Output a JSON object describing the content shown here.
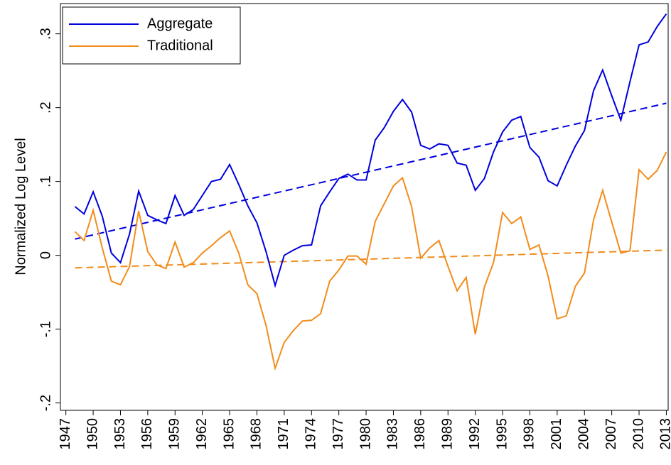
{
  "chart_data": {
    "type": "line",
    "ylabel": "Normalized Log Level",
    "x": [
      1948,
      1949,
      1950,
      1951,
      1952,
      1953,
      1954,
      1955,
      1956,
      1957,
      1958,
      1959,
      1960,
      1961,
      1962,
      1963,
      1964,
      1965,
      1966,
      1967,
      1968,
      1969,
      1970,
      1971,
      1972,
      1973,
      1974,
      1975,
      1976,
      1977,
      1978,
      1979,
      1980,
      1981,
      1982,
      1983,
      1984,
      1985,
      1986,
      1987,
      1988,
      1989,
      1990,
      1991,
      1992,
      1993,
      1994,
      1995,
      1996,
      1997,
      1998,
      1999,
      2000,
      2001,
      2002,
      2003,
      2004,
      2005,
      2006,
      2007,
      2008,
      2009,
      2010,
      2011,
      2012,
      2013
    ],
    "series": [
      {
        "name": "Aggregate",
        "color": "#0000dd",
        "values": [
          0.066,
          0.056,
          0.086,
          0.053,
          0.003,
          -0.01,
          0.029,
          0.087,
          0.054,
          0.048,
          0.043,
          0.081,
          0.054,
          0.062,
          0.081,
          0.1,
          0.103,
          0.123,
          0.096,
          0.067,
          0.044,
          0.005,
          -0.041,
          0.0,
          0.007,
          0.013,
          0.014,
          0.067,
          0.086,
          0.104,
          0.11,
          0.102,
          0.102,
          0.156,
          0.173,
          0.195,
          0.211,
          0.194,
          0.149,
          0.144,
          0.151,
          0.149,
          0.125,
          0.122,
          0.088,
          0.104,
          0.14,
          0.167,
          0.183,
          0.188,
          0.146,
          0.133,
          0.101,
          0.094,
          0.122,
          0.148,
          0.169,
          0.223,
          0.251,
          0.216,
          0.183,
          0.235,
          0.285,
          0.289,
          0.31,
          0.327
        ]
      },
      {
        "name": "Traditional",
        "color": "#f28c1c",
        "values": [
          0.032,
          0.02,
          0.061,
          0.01,
          -0.035,
          -0.04,
          -0.015,
          0.06,
          0.005,
          -0.013,
          -0.018,
          0.018,
          -0.016,
          -0.01,
          0.003,
          0.013,
          0.024,
          0.033,
          0.003,
          -0.04,
          -0.052,
          -0.095,
          -0.153,
          -0.118,
          -0.102,
          -0.089,
          -0.088,
          -0.079,
          -0.035,
          -0.02,
          -0.001,
          -0.001,
          -0.012,
          0.046,
          0.07,
          0.094,
          0.105,
          0.066,
          -0.004,
          0.01,
          0.02,
          -0.015,
          -0.048,
          -0.03,
          -0.107,
          -0.043,
          -0.01,
          0.058,
          0.043,
          0.052,
          0.008,
          0.014,
          -0.028,
          -0.086,
          -0.082,
          -0.042,
          -0.024,
          0.048,
          0.088,
          0.045,
          0.003,
          0.006,
          0.116,
          0.103,
          0.115,
          0.14
        ]
      }
    ],
    "trend_x": [
      1948,
      2013
    ],
    "trendlines": [
      {
        "color": "#0000dd",
        "values": [
          0.022,
          0.206
        ]
      },
      {
        "color": "#f28c1c",
        "values": [
          -0.017,
          0.007
        ]
      }
    ],
    "xlim": [
      1946.4,
      2013.2
    ],
    "xticks": [
      1947,
      1950,
      1953,
      1956,
      1959,
      1962,
      1965,
      1968,
      1971,
      1974,
      1977,
      1980,
      1983,
      1986,
      1989,
      1992,
      1995,
      1998,
      2001,
      2004,
      2007,
      2010,
      2013
    ],
    "ylim": [
      -0.21,
      0.341
    ],
    "yticks": [
      {
        "value": -0.2,
        "label": "-.2"
      },
      {
        "value": -0.1,
        "label": "-.1"
      },
      0,
      {
        "value": 0.1,
        "label": ".1"
      },
      {
        "value": 0.2,
        "label": ".2"
      },
      {
        "value": 0.3,
        "label": ".3"
      }
    ],
    "legend": "top-left"
  }
}
